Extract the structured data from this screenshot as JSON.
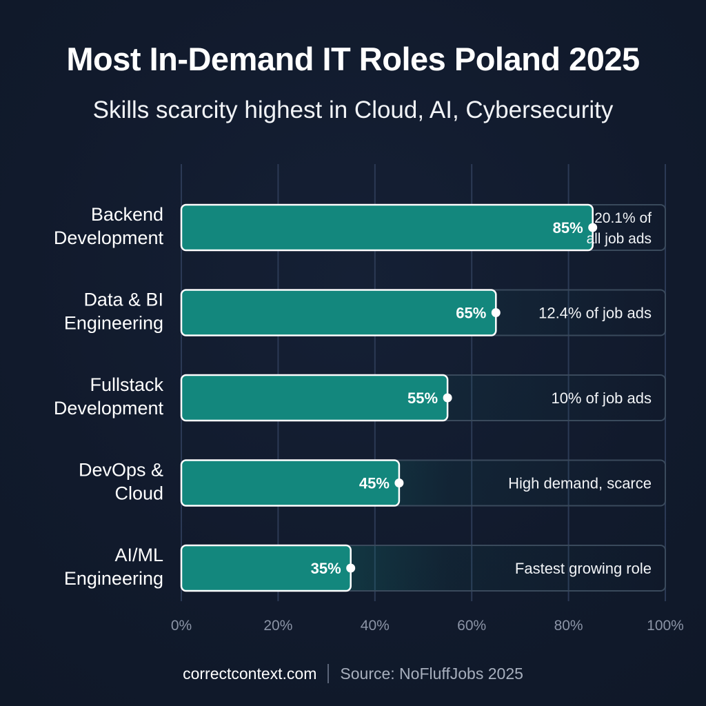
{
  "title": "Most In-Demand IT Roles Poland 2025",
  "subtitle": "Skills scarcity highest in Cloud, AI, Cybersecurity",
  "footer": {
    "site": "correctcontext.com",
    "source": "Source: NoFluffJobs 2025"
  },
  "colors": {
    "bar_fill": "#13877d",
    "bar_border": "#ffffff",
    "track_border": "#3a4a5c",
    "grid": "#2c3a55",
    "tick_text": "#8b94a6",
    "background": "#111a2c"
  },
  "chart_data": {
    "type": "bar",
    "orientation": "horizontal",
    "categories": [
      [
        "Backend",
        "Development"
      ],
      [
        "Data & BI",
        "Engineering"
      ],
      [
        "Fullstack",
        "Development"
      ],
      [
        "DevOps &",
        "Cloud"
      ],
      [
        "AI/ML",
        "Engineering"
      ]
    ],
    "values": [
      85,
      65,
      55,
      45,
      35
    ],
    "value_labels": [
      "85%",
      "65%",
      "55%",
      "45%",
      "35%"
    ],
    "annotations": [
      [
        "20.1% of",
        "all job ads"
      ],
      [
        "12.4% of job ads"
      ],
      [
        "10% of job ads"
      ],
      [
        "High demand, scarce"
      ],
      [
        "Fastest growing role"
      ]
    ],
    "xlim": [
      0,
      100
    ],
    "xticks": [
      0,
      20,
      40,
      60,
      80,
      100
    ],
    "xtick_labels": [
      "0%",
      "20%",
      "40%",
      "60%",
      "80%",
      "100%"
    ],
    "grid": true,
    "legend": "none"
  }
}
